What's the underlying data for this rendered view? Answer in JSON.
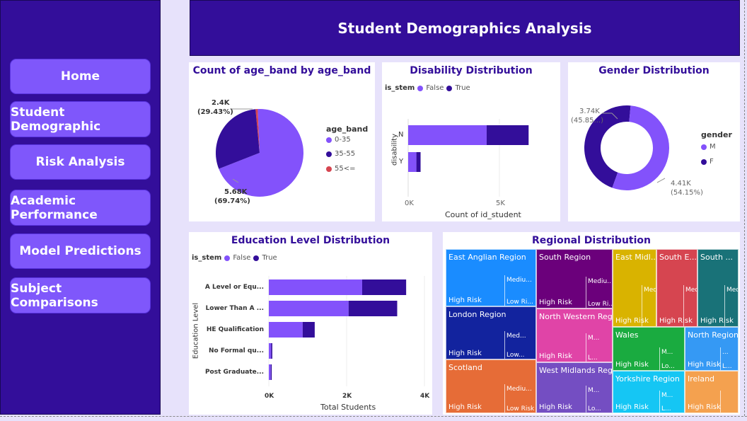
{
  "nav": [
    {
      "label": "Home"
    },
    {
      "label": "Student Demographic"
    },
    {
      "label": "Risk Analysis"
    },
    {
      "label": "Academic Performance"
    },
    {
      "label": "Model Predictions"
    },
    {
      "label": "Subject Comparisons"
    }
  ],
  "header": {
    "title": "Student Demographics Analysis"
  },
  "age_chart": {
    "title": "Count of age_band by age_band",
    "legend_title": "age_band",
    "label_large_value": "5.68K",
    "label_large_pct": "(69.74%)",
    "label_small_value": "2.4K",
    "label_small_pct": "(29.43%)"
  },
  "disability_chart": {
    "title": "Disability Distribution",
    "legend_title": "is_stem",
    "legend_false": "False",
    "legend_true": "True",
    "ylabel": "disability",
    "xlabel": "Count of id_student",
    "tick0": "0K",
    "tick1": "5K"
  },
  "gender_chart": {
    "title": "Gender Distribution",
    "legend_title": "gender",
    "label_f_value": "3.74K",
    "label_f_pct": "(45.85...)",
    "label_m_value": "4.41K",
    "label_m_pct": "(54.15%)"
  },
  "education_chart": {
    "title": "Education Level Distribution",
    "legend_title": "is_stem",
    "legend_false": "False",
    "legend_true": "True",
    "ylabel": "Education Level",
    "xlabel": "Total Students",
    "ticks": [
      "0K",
      "2K",
      "4K"
    ]
  },
  "regional_chart": {
    "title": "Regional Distribution",
    "cells": [
      {
        "name": "East Anglian Region",
        "color": "#1a8cff",
        "risk": "High Risk",
        "sub1": "Mediu...",
        "sub2": "Low Ri..."
      },
      {
        "name": "London Region",
        "color": "#12239e",
        "risk": "High Risk",
        "sub1": "Med...",
        "sub2": "Low..."
      },
      {
        "name": "Scotland",
        "color": "#e66c37",
        "risk": "High Risk",
        "sub1": "Mediu...",
        "sub2": "Low Risk"
      },
      {
        "name": "South Region",
        "color": "#6b007b",
        "risk": "High Risk",
        "sub1": "Mediu...",
        "sub2": "Low Ri..."
      },
      {
        "name": "North Western Reg...",
        "color": "#e044a7",
        "risk": "High Risk",
        "sub1": "M...",
        "sub2": "L..."
      },
      {
        "name": "West Midlands Reg...",
        "color": "#744ec2",
        "risk": "High Risk",
        "sub1": "M...",
        "sub2": "Lo..."
      },
      {
        "name": "East Midl...",
        "color": "#d9b300",
        "risk": "High Risk",
        "sub1": "Mediu...",
        "sub2": ""
      },
      {
        "name": "South E...",
        "color": "#d64550",
        "risk": "High Risk",
        "sub1": "Medi...",
        "sub2": ""
      },
      {
        "name": "South ...",
        "color": "#197278",
        "risk": "High Risk",
        "sub1": "Medi...",
        "sub2": ""
      },
      {
        "name": "Wales",
        "color": "#1aab40",
        "risk": "High Risk",
        "sub1": "M...",
        "sub2": "Lo..."
      },
      {
        "name": "North Region",
        "color": "#3599f4",
        "risk": "High Risk",
        "sub1": "...",
        "sub2": "L..."
      },
      {
        "name": "Yorkshire Region",
        "color": "#15c6f4",
        "risk": "High Risk",
        "sub1": "M...",
        "sub2": "L..."
      },
      {
        "name": "Ireland",
        "color": "#f4a14f",
        "risk": "High Risk",
        "sub1": "",
        "sub2": ""
      }
    ]
  },
  "chart_data": [
    {
      "type": "pie",
      "title": "Count of age_band by age_band",
      "categories": [
        "0-35",
        "35-55",
        "55<="
      ],
      "values": [
        5680,
        2400,
        67
      ],
      "colors": [
        "#8352fb",
        "#330e9a",
        "#d64550"
      ],
      "legend": "right"
    },
    {
      "type": "bar",
      "title": "Disability Distribution",
      "categories": [
        "N",
        "Y"
      ],
      "series": [
        {
          "name": "False",
          "values": [
            4300,
            450
          ]
        },
        {
          "name": "True",
          "values": [
            2300,
            230
          ]
        }
      ],
      "xlabel": "Count of id_student",
      "ylabel": "disability",
      "xlim": [
        0,
        6000
      ],
      "legend": "top-left"
    },
    {
      "type": "pie",
      "title": "Gender Distribution",
      "categories": [
        "M",
        "F"
      ],
      "values": [
        4410,
        3740
      ],
      "colors": [
        "#8352fb",
        "#330e9a"
      ],
      "legend": "right"
    },
    {
      "type": "bar",
      "title": "Education Level Distribution",
      "categories": [
        "A Level or Equ...",
        "Lower Than A ...",
        "HE Qualification",
        "No Formal qu...",
        "Post Graduate..."
      ],
      "series": [
        {
          "name": "False",
          "values": [
            2400,
            2050,
            870,
            60,
            50
          ]
        },
        {
          "name": "True",
          "values": [
            1130,
            1250,
            310,
            30,
            25
          ]
        }
      ],
      "xlabel": "Total Students",
      "ylabel": "Education Level",
      "xlim": [
        0,
        4000
      ],
      "legend": "top-left"
    },
    {
      "type": "treemap",
      "title": "Regional Distribution",
      "categories": [
        "East Anglian Region",
        "London Region",
        "Scotland",
        "South Region",
        "North Western Reg...",
        "West Midlands Reg...",
        "East Midl...",
        "South E...",
        "South ...",
        "Wales",
        "North Region",
        "Yorkshire Region",
        "Ireland"
      ]
    }
  ]
}
